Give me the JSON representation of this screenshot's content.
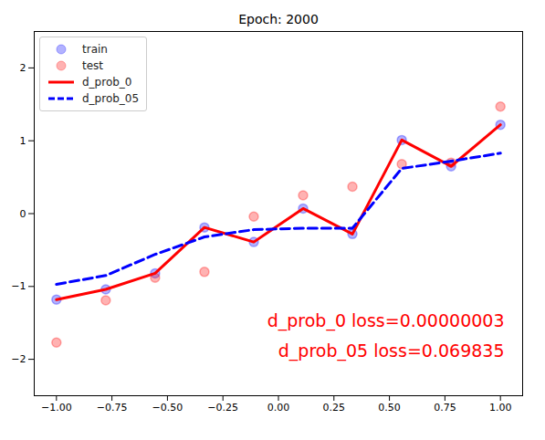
{
  "chart_data": {
    "type": "line",
    "title": "Epoch: 2000",
    "x": [
      -1,
      -0.7778,
      -0.5556,
      -0.3333,
      -0.1111,
      0.1111,
      0.3333,
      0.5556,
      0.7778,
      1
    ],
    "series": [
      {
        "name": "train",
        "type": "scatter",
        "marker": "o",
        "color": "#0000ff",
        "values": [
          -1.18,
          -1.04,
          -0.82,
          -0.19,
          -0.39,
          0.07,
          -0.28,
          1.01,
          0.65,
          1.22
        ]
      },
      {
        "name": "test",
        "type": "scatter",
        "marker": "o",
        "color": "#ff0000",
        "values": [
          -1.77,
          -1.19,
          -0.88,
          -0.8,
          -0.04,
          0.25,
          0.37,
          0.68,
          0.7,
          1.47
        ]
      },
      {
        "name": "d_prob_0",
        "type": "line",
        "line_style": "solid",
        "color": "#ff0000",
        "values": [
          -1.18,
          -1.04,
          -0.82,
          -0.19,
          -0.39,
          0.07,
          -0.28,
          1.01,
          0.65,
          1.22
        ]
      },
      {
        "name": "d_prob_05",
        "type": "line",
        "line_style": "dashed",
        "color": "#0000ff",
        "values": [
          -0.97,
          -0.85,
          -0.56,
          -0.32,
          -0.22,
          -0.2,
          -0.2,
          0.62,
          0.72,
          0.83
        ]
      }
    ],
    "annotations": [
      "d_prob_0 loss=0.00000003",
      "d_prob_05 loss=0.069835"
    ],
    "xlim": [
      -1.1,
      1.1
    ],
    "xticks": [
      {
        "value": -1,
        "label": "−1.00"
      },
      {
        "value": -0.75,
        "label": "−0.75"
      },
      {
        "value": -0.5,
        "label": "−0.50"
      },
      {
        "value": -0.25,
        "label": "−0.25"
      },
      {
        "value": 0,
        "label": "0.00"
      },
      {
        "value": 0.25,
        "label": "0.25"
      },
      {
        "value": 0.5,
        "label": "0.50"
      },
      {
        "value": 0.75,
        "label": "0.75"
      },
      {
        "value": 1,
        "label": "1.00"
      }
    ],
    "ylim": [
      -2.5,
      2.5
    ],
    "yticks": [
      {
        "value": -2,
        "label": "−2"
      },
      {
        "value": -1,
        "label": "−1"
      },
      0,
      1,
      2
    ],
    "grid": false,
    "legend": "upper left"
  }
}
